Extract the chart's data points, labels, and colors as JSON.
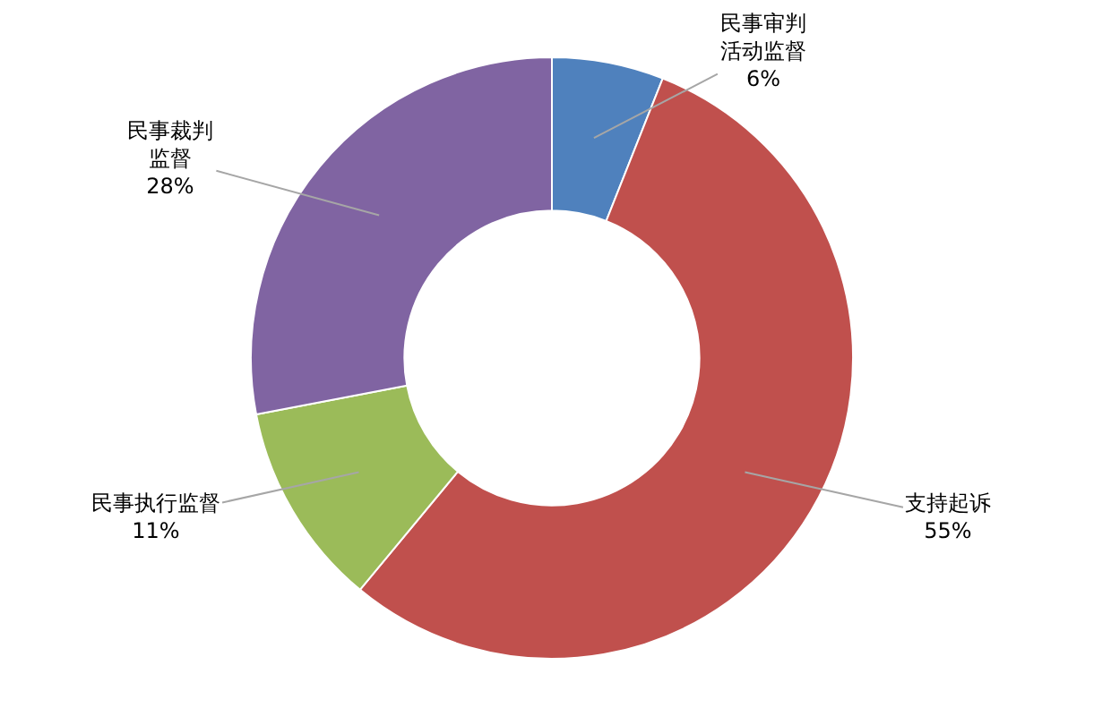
{
  "chart_data": {
    "type": "donut",
    "categories": [
      "民事审判活动监督",
      "支持起诉",
      "民事执行监督",
      "民事裁判监督"
    ],
    "values": [
      6,
      55,
      11,
      28
    ],
    "value_labels": [
      "6%",
      "55%",
      "11%",
      "28%"
    ],
    "colors": [
      "#4f81bd",
      "#c0504d",
      "#9bbb59",
      "#8064a2"
    ]
  }
}
